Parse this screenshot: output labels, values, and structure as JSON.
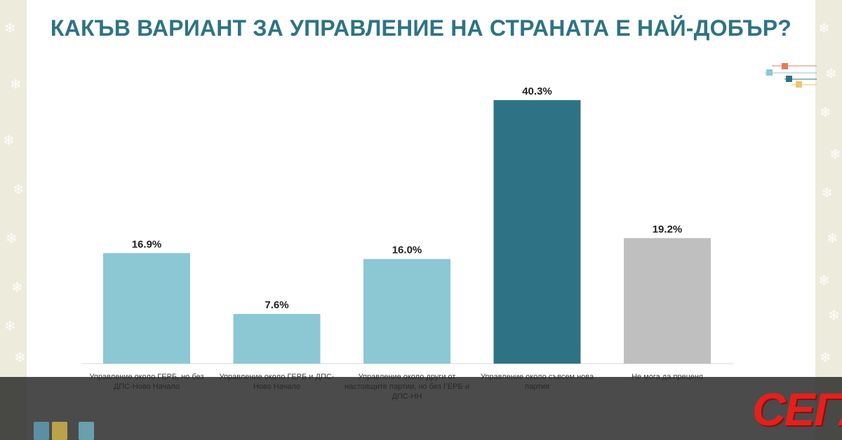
{
  "title": "КАКЪВ ВАРИАНТ ЗА УПРАВЛЕНИЕ НА СТРАНАТА Е НАЙ-ДОБЪР?",
  "logo_text": "СЕГА",
  "colors": {
    "bar_light": "#8cc7d4",
    "bar_dark": "#2e7385",
    "bar_grey": "#bfbfbf",
    "title": "#2e7385",
    "logo": "#e0221e"
  },
  "decorations": {
    "snowflake_glyph": "❄",
    "gift_icon": "gift-icon"
  },
  "chart_data": {
    "type": "bar",
    "title": "",
    "xlabel": "",
    "ylabel": "",
    "ylim": [
      0,
      45
    ],
    "grid": false,
    "legend": "none",
    "categories": [
      [
        "Управление около ГЕРБ, но без",
        "ДПС-Ново Начало"
      ],
      [
        "Управление около ГЕРБ и ДПС-",
        "Ново Начало"
      ],
      [
        "Управление около други от",
        "настоящите партии, но без ГЕРБ и",
        "ДПС-НН"
      ],
      [
        "Управление около съвсем нова",
        "партия"
      ],
      [
        "Не мога да преценя"
      ]
    ],
    "values": [
      16.9,
      7.6,
      16.0,
      40.3,
      19.2
    ],
    "value_labels": [
      "16.9%",
      "7.6%",
      "16.0%",
      "40.3%",
      "19.2%"
    ],
    "bar_colors": [
      "#8cc7d4",
      "#8cc7d4",
      "#8cc7d4",
      "#2e7385",
      "#bfbfbf"
    ]
  }
}
